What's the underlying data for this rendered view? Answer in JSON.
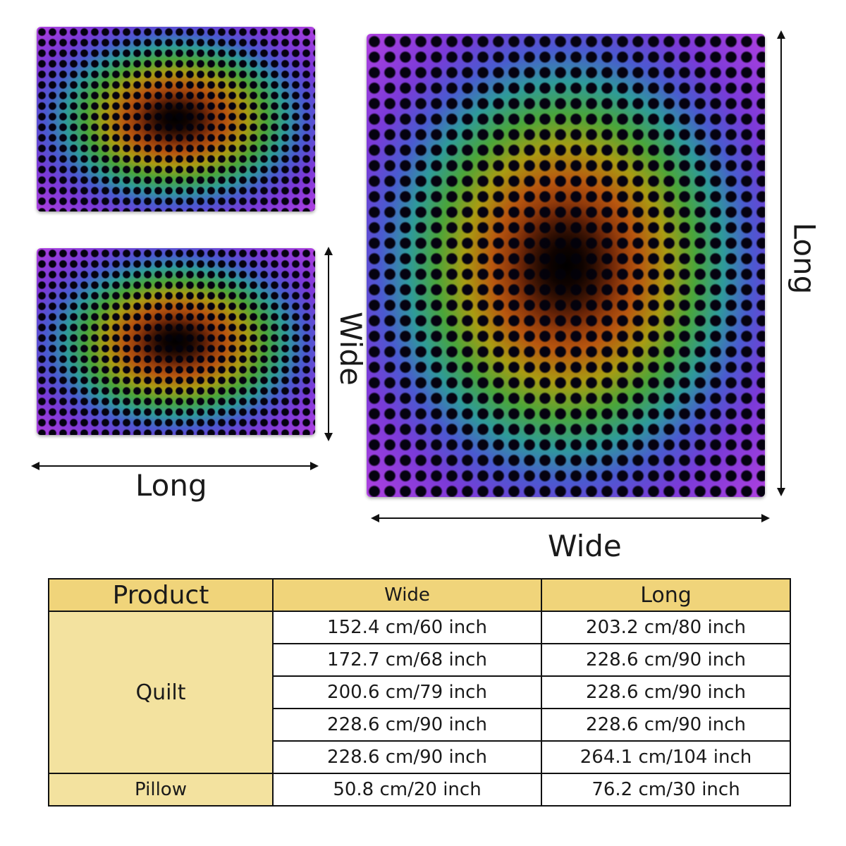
{
  "labels": {
    "pillow_long": "Long",
    "pillow_wide": "Wide",
    "quilt_long": "Long",
    "quilt_wide": "Wide"
  },
  "table": {
    "headers": [
      "Product",
      "Wide",
      "Long"
    ],
    "quilt": {
      "label": "Quilt",
      "rows": [
        [
          "152.4 cm/60 inch",
          "203.2 cm/80 inch"
        ],
        [
          "172.7 cm/68 inch",
          "228.6 cm/90 inch"
        ],
        [
          "200.6 cm/79 inch",
          "228.6 cm/90 inch"
        ],
        [
          "228.6 cm/90 inch",
          "228.6 cm/90 inch"
        ],
        [
          "228.6 cm/90 inch",
          "264.1 cm/104 inch"
        ]
      ]
    },
    "pillow": {
      "label": "Pillow",
      "wide": "50.8 cm/20 inch",
      "long": "76.2 cm/30 inch"
    }
  },
  "colors": {
    "header_bg": "#f0d47a",
    "product_cell_bg": "#f3e29f"
  }
}
